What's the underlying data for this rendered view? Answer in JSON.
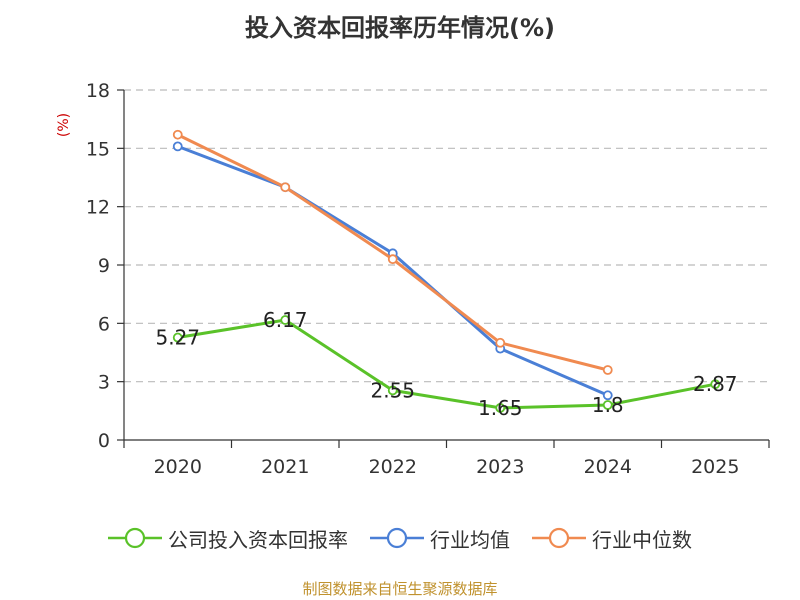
{
  "chart_data": {
    "type": "line",
    "title": "投入资本回报率历年情况(%)",
    "ylabel": "(%)",
    "xlabel": "",
    "categories": [
      "2020",
      "2021",
      "2022",
      "2023",
      "2024",
      "2025"
    ],
    "ylim": [
      0,
      18
    ],
    "yticks": [
      0,
      3,
      6,
      9,
      12,
      15,
      18
    ],
    "grid": true,
    "legend_position": "bottom",
    "series": [
      {
        "name": "公司投入资本回报率",
        "color": "#5ac229",
        "values": [
          5.27,
          6.17,
          2.55,
          1.65,
          1.8,
          2.87
        ],
        "labels": [
          "5.27",
          "6.17",
          "2.55",
          "1.65",
          "1.8",
          "2.87"
        ]
      },
      {
        "name": "行业均值",
        "color": "#4a7fd6",
        "values": [
          15.1,
          13.0,
          9.6,
          4.7,
          2.3,
          null
        ]
      },
      {
        "name": "行业中位数",
        "color": "#f08a50",
        "values": [
          15.7,
          13.0,
          9.3,
          5.0,
          3.6,
          null
        ]
      }
    ]
  },
  "source_note": "制图数据来自恒生聚源数据库"
}
